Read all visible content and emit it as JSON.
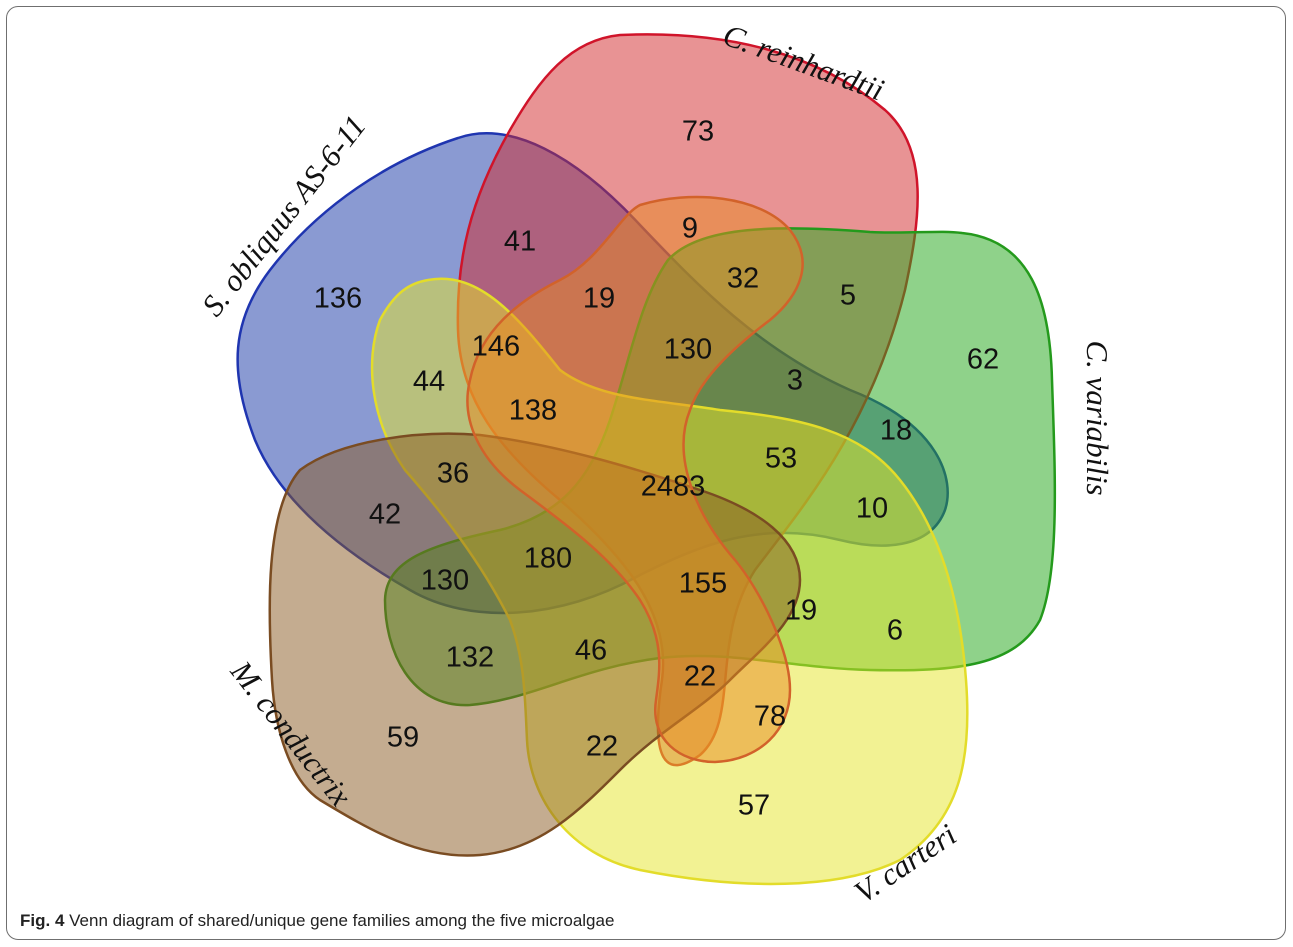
{
  "sets": [
    {
      "name": "S. obliquus AS-6-11",
      "fill": "#1e3ea8",
      "stroke": "#1f35b0"
    },
    {
      "name": "C. reinhardtii",
      "fill": "#d2282a",
      "stroke": "#d0142a"
    },
    {
      "name": "C. variabilis",
      "fill": "#28a81e",
      "stroke": "#249a1c"
    },
    {
      "name": "V. carteri",
      "fill": "#e6e628",
      "stroke": "#e3dc2a"
    },
    {
      "name": "M. conductrix",
      "fill": "#8a5a22",
      "stroke": "#7a4c22"
    }
  ],
  "regions": [
    "73",
    "9",
    "41",
    "32",
    "5",
    "136",
    "19",
    "146",
    "130",
    "62",
    "44",
    "3",
    "138",
    "18",
    "36",
    "2483",
    "53",
    "42",
    "10",
    "180",
    "130",
    "155",
    "19",
    "6",
    "132",
    "46",
    "22",
    "78",
    "59",
    "22",
    "57"
  ],
  "caption": {
    "label": "Fig. 4",
    "text": " Venn diagram of shared/unique gene families among the five microalgae"
  }
}
